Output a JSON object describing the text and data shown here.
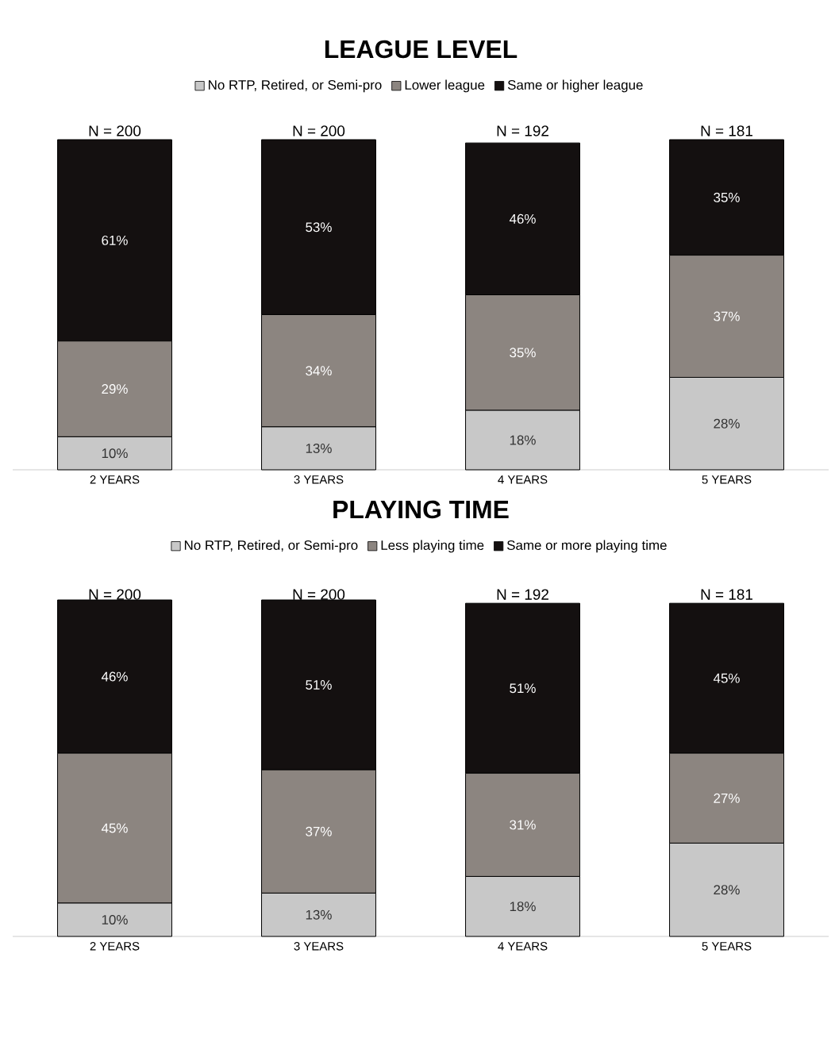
{
  "chart_data": [
    {
      "type": "bar",
      "title": "LEAGUE LEVEL",
      "stacked": true,
      "categories": [
        "2 YEARS",
        "3 YEARS",
        "4 YEARS",
        "5 YEARS"
      ],
      "tick_labels": "x",
      "legend": "top",
      "series": [
        {
          "name": "No RTP, Retired, or Semi-pro",
          "color": "#c8c8c8",
          "values": [
            10,
            13,
            18,
            28
          ],
          "value_labels": [
            "10%",
            "13%",
            "18%",
            "28%"
          ]
        },
        {
          "name": "Lower league",
          "color": "#8c8580",
          "values": [
            29,
            34,
            35,
            37
          ],
          "value_labels": [
            "29%",
            "34%",
            "35%",
            "37%"
          ]
        },
        {
          "name": "Same or higher league",
          "color": "#141010",
          "values": [
            61,
            53,
            46,
            35
          ],
          "value_labels": [
            "61%",
            "53%",
            "46%",
            "35%"
          ]
        }
      ],
      "annotations": [
        {
          "text": "N = 200",
          "x": "2 YEARS",
          "y": 100
        },
        {
          "text": "N = 200",
          "x": "3 YEARS",
          "y": 100
        },
        {
          "text": "N = 192",
          "x": "4 YEARS",
          "y": 100
        },
        {
          "text": "N = 181",
          "x": "5 YEARS",
          "y": 100
        }
      ]
    },
    {
      "type": "bar",
      "title": "PLAYING TIME",
      "stacked": true,
      "categories": [
        "2 YEARS",
        "3 YEARS",
        "4 YEARS",
        "5 YEARS"
      ],
      "tick_labels": "x",
      "legend": "top",
      "series": [
        {
          "name": "No RTP, Retired, or Semi-pro",
          "color": "#c8c8c8",
          "values": [
            10,
            13,
            18,
            28
          ],
          "value_labels": [
            "10%",
            "13%",
            "18%",
            "28%"
          ]
        },
        {
          "name": "Less playing time",
          "color": "#8c8580",
          "values": [
            45,
            37,
            31,
            27
          ],
          "value_labels": [
            "45%",
            "37%",
            "31%",
            "27%"
          ]
        },
        {
          "name": "Same or more playing time",
          "color": "#141010",
          "values": [
            46,
            51,
            51,
            45
          ],
          "value_labels": [
            "46%",
            "51%",
            "51%",
            "45%"
          ]
        }
      ],
      "annotations": [
        {
          "text": "N = 200",
          "x": "2 YEARS",
          "y": 100
        },
        {
          "text": "N = 200",
          "x": "3 YEARS",
          "y": 100
        },
        {
          "text": "N = 192",
          "x": "4 YEARS",
          "y": 100
        },
        {
          "text": "N = 181",
          "x": "5 YEARS",
          "y": 100
        }
      ]
    }
  ]
}
